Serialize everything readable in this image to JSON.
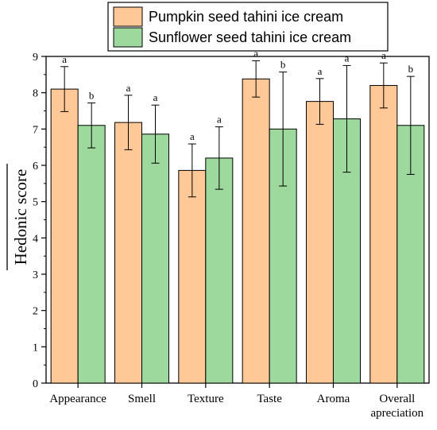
{
  "chart_data": {
    "type": "bar",
    "title": "",
    "xlabel": "",
    "ylabel": "Hedonic score",
    "ylim": [
      0,
      9
    ],
    "yticks": [
      "0",
      "1",
      "2",
      "3",
      "4",
      "5",
      "6",
      "7",
      "8",
      "9"
    ],
    "grid": false,
    "legend_position": "top",
    "categories": [
      [
        "Appearance"
      ],
      [
        "Smell"
      ],
      [
        "Texture"
      ],
      [
        "Taste"
      ],
      [
        "Aroma"
      ],
      [
        "Overall",
        "apreciation"
      ]
    ],
    "series": [
      {
        "name": "Pumpkin seed tahini ice cream",
        "color": "#FFC896",
        "values": [
          8.1,
          7.18,
          5.86,
          8.38,
          7.76,
          8.2
        ],
        "errors": [
          0.62,
          0.75,
          0.73,
          0.5,
          0.63,
          0.62
        ],
        "letters": [
          "a",
          "a",
          "a",
          "a",
          "a",
          "a"
        ]
      },
      {
        "name": "Sunflower seed tahini ice cream",
        "color": "#9DD89C",
        "values": [
          7.1,
          6.86,
          6.2,
          7.0,
          7.28,
          7.1
        ],
        "errors": [
          0.62,
          0.8,
          0.86,
          1.57,
          1.47,
          1.35
        ],
        "letters": [
          "b",
          "a",
          "a",
          "b",
          "a",
          "b"
        ]
      }
    ]
  }
}
